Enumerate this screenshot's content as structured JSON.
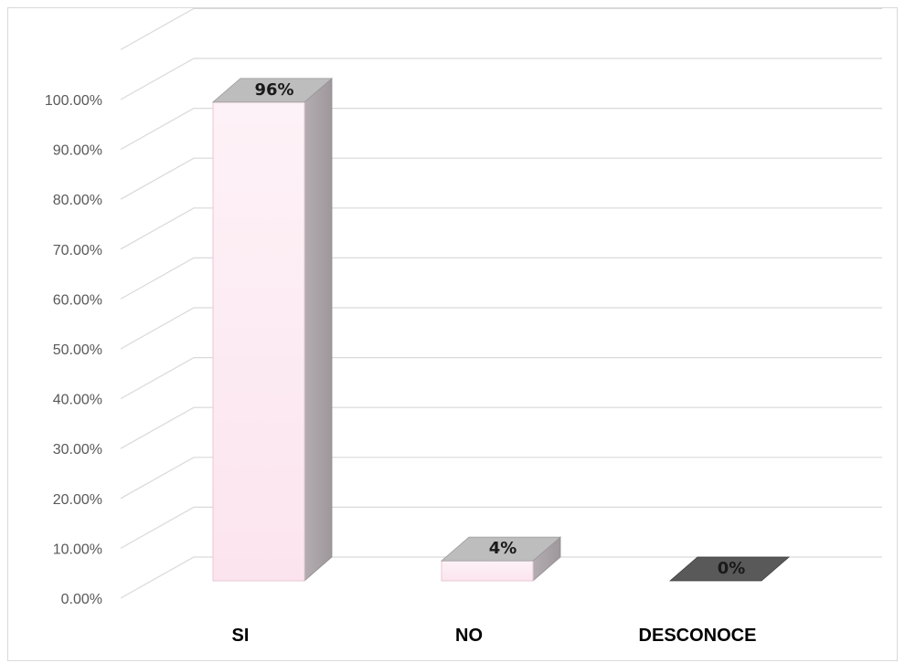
{
  "chart_data": {
    "type": "bar",
    "title": "",
    "xlabel": "",
    "ylabel": "",
    "categories": [
      "SI",
      "NO",
      "DESCONOCE"
    ],
    "values": [
      0.96,
      0.04,
      0.0
    ],
    "data_labels": [
      "96%",
      "4%",
      "0%"
    ],
    "ylim": [
      0,
      1.0
    ],
    "yticks": [
      0,
      0.1,
      0.2,
      0.3,
      0.4,
      0.5,
      0.6,
      0.7,
      0.8,
      0.9,
      1.0
    ],
    "ytick_labels": [
      "0.00%",
      "10.00%",
      "20.00%",
      "30.00%",
      "40.00%",
      "50.00%",
      "60.00%",
      "70.00%",
      "80.00%",
      "90.00%",
      "100.00%"
    ],
    "grid": true,
    "legend": "none",
    "style": "3d-column",
    "colors": {
      "bar_front": "#fde9f1",
      "bar_side": "#a7a0a4",
      "bar_top": "#bdbdbd",
      "zero_bar_top": "#595959",
      "grid": "#d9d9d9",
      "tick_text": "#595959"
    }
  }
}
